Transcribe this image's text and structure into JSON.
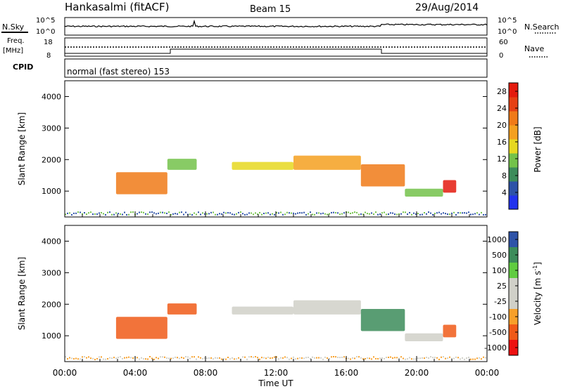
{
  "header": {
    "station": "Hankasalmi (fitACF)",
    "beam": "Beam 15",
    "date": "29/Aug/2014"
  },
  "small_panels": {
    "nsky_label": "N.Sky",
    "nsky_top": "10^5",
    "nsky_bottom": "10^0",
    "nsearch_top": "10^5",
    "nsearch_bottom": "10^0",
    "nsearch_label": "N.Search",
    "freq_label_1": "Freq.",
    "freq_label_2": "[MHz]",
    "freq_top": "18",
    "freq_bottom": "8",
    "nave_top": "60",
    "nave_bottom": "0",
    "nave_label": "Nave",
    "cpid_label": "CPID",
    "cpid_text": "normal (fast stereo) 153"
  },
  "colors": {
    "power": [
      "#2233ee",
      "#2e53a8",
      "#3c8c5a",
      "#73c24a",
      "#e6d820",
      "#f4a020",
      "#f07a18",
      "#e64014",
      "#e41a0e"
    ],
    "velocity": [
      "#ee1111",
      "#f05a18",
      "#f7a02a",
      "#d0d0c8",
      "#d0d0c8",
      "#60cc40",
      "#3c8c5a",
      "#2e53a8"
    ]
  },
  "chart_data": [
    {
      "type": "heatmap",
      "panel": "power",
      "title": "",
      "xlabel": "",
      "ylabel": "Slant Range [km]",
      "xlim": [
        "00:00",
        "00:00"
      ],
      "ylim": [
        180,
        4500
      ],
      "yticks": [
        1000,
        2000,
        3000,
        4000
      ],
      "colorbar_label": "Power [dB]",
      "colorbar_ticks": [
        "28",
        "24",
        "20",
        "16",
        "12",
        "8",
        "4"
      ],
      "colorbar_range": [
        0,
        30
      ],
      "echo_bands": [
        {
          "from": "02:55",
          "to": "05:50",
          "center_km": 1250,
          "width_km": 700,
          "level": 22
        },
        {
          "from": "05:50",
          "to": "07:30",
          "center_km": 1850,
          "width_km": 350,
          "level": 12
        },
        {
          "from": "09:30",
          "to": "13:00",
          "center_km": 1800,
          "width_km": 250,
          "level": 16
        },
        {
          "from": "13:00",
          "to": "16:50",
          "center_km": 1900,
          "width_km": 450,
          "level": 18
        },
        {
          "from": "16:50",
          "to": "19:20",
          "center_km": 1500,
          "width_km": 700,
          "level": 20
        },
        {
          "from": "19:20",
          "to": "21:30",
          "center_km": 950,
          "width_km": 250,
          "level": 10
        },
        {
          "from": "21:30",
          "to": "22:15",
          "center_km": 1150,
          "width_km": 400,
          "level": 28
        }
      ]
    },
    {
      "type": "heatmap",
      "panel": "velocity",
      "title": "",
      "xlabel": "Time UT",
      "ylabel": "Slant Range [km]",
      "xlim": [
        "00:00",
        "00:00"
      ],
      "ylim": [
        180,
        4500
      ],
      "xticks": [
        "00:00",
        "04:00",
        "08:00",
        "12:00",
        "16:00",
        "20:00",
        "00:00"
      ],
      "yticks": [
        1000,
        2000,
        3000,
        4000
      ],
      "colorbar_label": "Velocity [m s^-1]",
      "colorbar_ticks": [
        "1000",
        "500",
        "100",
        "25",
        "-25",
        "-100",
        "-500",
        "-1000"
      ],
      "echo_bands": [
        {
          "from": "02:55",
          "to": "05:50",
          "center_km": 1250,
          "width_km": 700,
          "velocity": -300
        },
        {
          "from": "05:50",
          "to": "07:30",
          "center_km": 1850,
          "width_km": 350,
          "velocity": -150
        },
        {
          "from": "09:30",
          "to": "13:00",
          "center_km": 1800,
          "width_km": 250,
          "velocity": 0
        },
        {
          "from": "13:00",
          "to": "16:50",
          "center_km": 1900,
          "width_km": 450,
          "velocity": 0
        },
        {
          "from": "16:50",
          "to": "19:20",
          "center_km": 1500,
          "width_km": 700,
          "velocity": 200
        },
        {
          "from": "19:20",
          "to": "21:30",
          "center_km": 950,
          "width_km": 250,
          "velocity": 0
        },
        {
          "from": "21:30",
          "to": "22:15",
          "center_km": 1150,
          "width_km": 400,
          "velocity": -200
        }
      ]
    }
  ]
}
